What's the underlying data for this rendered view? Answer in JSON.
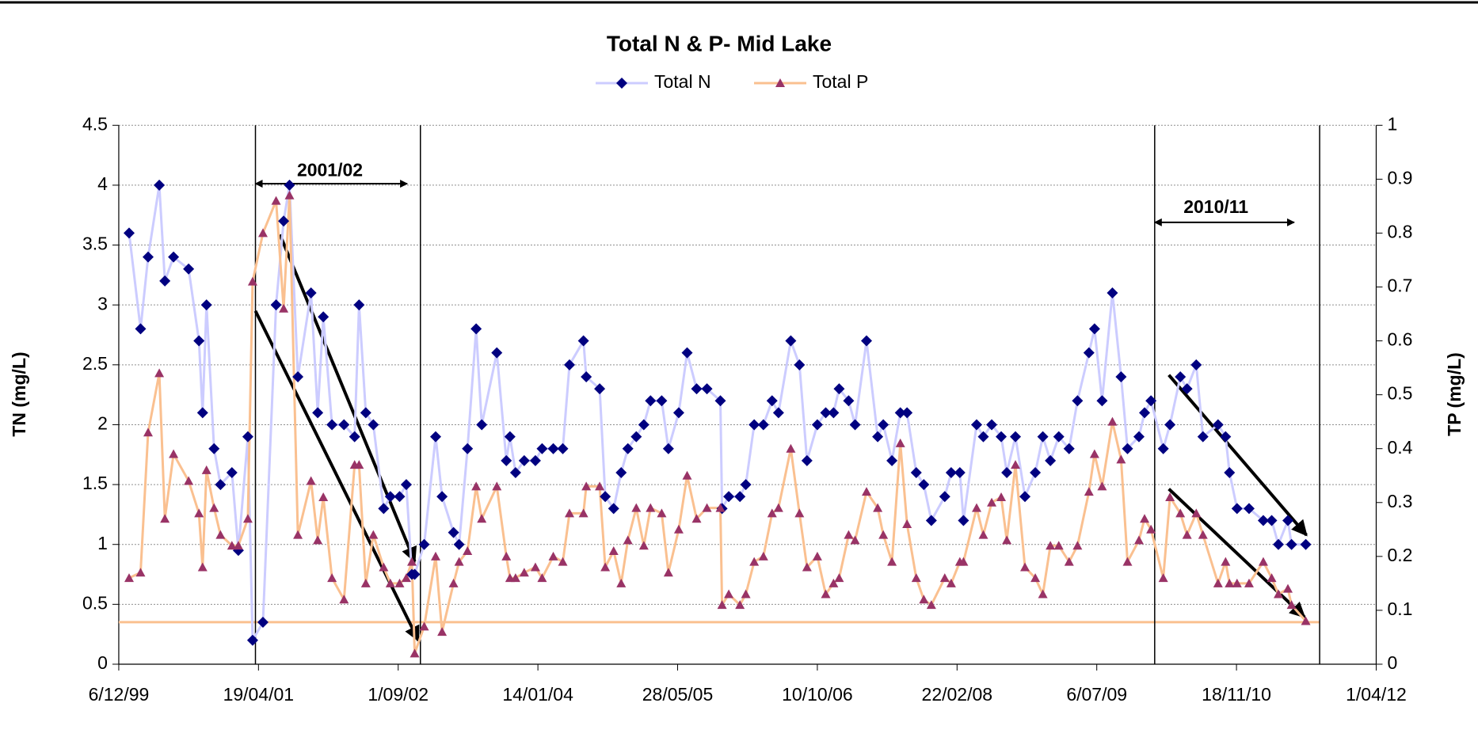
{
  "chart_data": {
    "type": "line",
    "title": "Total N & P- Mid Lake",
    "y_label": "TN (mg/L)",
    "y2_label": "TP (mg/L)",
    "annotations": [
      "2001/02",
      "2010/11"
    ],
    "x": [
      "2000-01-12",
      "2000-02-22",
      "2000-03-20",
      "2000-04-29",
      "2000-05-19",
      "2000-06-19",
      "2000-08-12",
      "2000-09-18",
      "2000-10-01",
      "2000-10-15",
      "2000-11-11",
      "2000-12-04",
      "2001-01-14",
      "2001-02-06",
      "2001-03-12",
      "2001-03-29",
      "2001-05-05",
      "2001-06-21",
      "2001-07-18",
      "2001-08-08",
      "2001-09-07",
      "2001-10-24",
      "2001-11-17",
      "2001-12-07",
      "2002-01-07",
      "2002-02-19",
      "2002-03-29",
      "2002-04-14",
      "2002-05-08",
      "2002-06-04",
      "2002-07-11",
      "2002-08-04",
      "2002-09-06",
      "2002-09-30",
      "2002-10-20",
      "2002-10-30",
      "2002-12-03",
      "2003-01-13",
      "2003-02-05",
      "2003-03-18",
      "2003-04-07",
      "2003-05-07",
      "2003-06-07",
      "2003-06-27",
      "2003-08-20",
      "2003-09-23",
      "2003-10-06",
      "2003-10-26",
      "2003-11-26",
      "2004-01-05",
      "2004-01-29",
      "2004-03-09",
      "2004-04-12",
      "2004-05-06",
      "2004-06-25",
      "2004-07-05",
      "2004-08-22",
      "2004-09-11",
      "2004-10-11",
      "2004-11-07",
      "2004-12-01",
      "2004-12-31",
      "2005-01-27",
      "2005-02-20",
      "2005-04-01",
      "2005-04-25",
      "2005-06-01",
      "2005-07-01",
      "2005-08-04",
      "2005-09-10",
      "2005-10-28",
      "2005-11-03",
      "2005-11-27",
      "2006-01-06",
      "2006-01-27",
      "2006-02-26",
      "2006-03-31",
      "2006-05-01",
      "2006-05-24",
      "2006-07-07",
      "2006-08-07",
      "2006-09-03",
      "2006-10-10",
      "2006-11-09",
      "2006-12-07",
      "2006-12-27",
      "2007-01-30",
      "2007-02-22",
      "2007-04-04",
      "2007-05-14",
      "2007-06-03",
      "2007-07-04",
      "2007-08-03",
      "2007-08-27",
      "2007-09-29",
      "2007-10-26",
      "2007-11-22",
      "2008-01-09",
      "2008-02-01",
      "2008-03-03",
      "2008-03-16",
      "2008-05-02",
      "2008-05-26",
      "2008-06-25",
      "2008-07-29",
      "2008-08-18",
      "2008-09-18",
      "2008-10-22",
      "2008-11-28",
      "2008-12-25",
      "2009-01-21",
      "2009-02-20",
      "2009-03-29",
      "2009-04-28",
      "2009-06-08",
      "2009-06-28",
      "2009-07-25",
      "2009-08-31",
      "2009-10-01",
      "2009-10-24",
      "2009-12-04",
      "2009-12-24",
      "2010-01-16",
      "2010-03-01",
      "2010-03-25",
      "2010-05-01",
      "2010-05-25",
      "2010-06-27",
      "2010-07-21",
      "2010-09-13",
      "2010-10-10",
      "2010-10-24",
      "2010-11-20",
      "2011-01-02",
      "2011-02-22",
      "2011-03-24",
      "2011-04-17",
      "2011-05-21",
      "2011-06-03",
      "2011-07-24"
    ],
    "series": [
      {
        "name": "Total N",
        "line_color": "#ccccff",
        "color": "#000080",
        "marker": "diamond",
        "values": [
          3.6,
          2.8,
          3.4,
          4.0,
          3.2,
          3.4,
          3.3,
          2.7,
          2.1,
          3.0,
          1.8,
          1.5,
          1.6,
          0.95,
          1.9,
          0.2,
          0.35,
          3.0,
          3.7,
          4.0,
          2.4,
          3.1,
          2.1,
          2.9,
          2.0,
          2.0,
          1.9,
          3.0,
          2.1,
          2.0,
          1.3,
          1.4,
          1.4,
          1.5,
          0.75,
          0.75,
          1.0,
          1.9,
          1.4,
          1.1,
          1.0,
          1.8,
          2.8,
          2.0,
          2.6,
          1.7,
          1.9,
          1.6,
          1.7,
          1.7,
          1.8,
          1.8,
          1.8,
          2.5,
          2.7,
          2.4,
          2.3,
          1.4,
          1.3,
          1.6,
          1.8,
          1.9,
          2.0,
          2.2,
          2.2,
          1.8,
          2.1,
          2.6,
          2.3,
          2.3,
          2.2,
          1.3,
          1.4,
          1.4,
          1.5,
          2.0,
          2.0,
          2.2,
          2.1,
          2.7,
          2.5,
          1.7,
          2.0,
          2.1,
          2.1,
          2.3,
          2.2,
          2.0,
          2.7,
          1.9,
          2.0,
          1.7,
          2.1,
          2.1,
          1.6,
          1.5,
          1.2,
          1.4,
          1.6,
          1.6,
          1.2,
          2.0,
          1.9,
          2.0,
          1.9,
          1.6,
          1.9,
          1.4,
          1.6,
          1.9,
          1.7,
          1.9,
          1.8,
          2.2,
          2.6,
          2.8,
          2.2,
          3.1,
          2.4,
          1.8,
          1.9,
          2.1,
          2.2,
          1.8,
          2.0,
          2.4,
          2.3,
          2.5,
          1.9,
          2.0,
          1.9,
          1.6,
          1.3,
          1.3,
          1.2,
          1.2,
          1.0,
          1.2,
          1.0,
          1.0
        ]
      },
      {
        "name": "Total P",
        "axis": "y2",
        "line_color": "#fac090",
        "color": "#993366",
        "marker": "triangle",
        "values": [
          0.16,
          0.17,
          0.43,
          0.54,
          0.27,
          0.39,
          0.34,
          0.28,
          0.18,
          0.36,
          0.29,
          0.24,
          0.22,
          0.22,
          0.27,
          0.71,
          0.8,
          0.86,
          0.66,
          0.87,
          0.24,
          0.34,
          0.23,
          0.31,
          0.16,
          0.12,
          0.37,
          0.37,
          0.15,
          0.24,
          0.18,
          0.15,
          0.15,
          0.16,
          0.19,
          0.02,
          0.07,
          0.2,
          0.06,
          0.15,
          0.19,
          0.21,
          0.33,
          0.27,
          0.33,
          0.2,
          0.16,
          0.16,
          0.17,
          0.18,
          0.16,
          0.2,
          0.19,
          0.28,
          0.28,
          0.33,
          0.33,
          0.18,
          0.21,
          0.15,
          0.23,
          0.29,
          0.22,
          0.29,
          0.28,
          0.17,
          0.25,
          0.35,
          0.27,
          0.29,
          0.29,
          0.11,
          0.13,
          0.11,
          0.13,
          0.19,
          0.2,
          0.28,
          0.29,
          0.4,
          0.28,
          0.18,
          0.2,
          0.13,
          0.15,
          0.16,
          0.24,
          0.23,
          0.32,
          0.29,
          0.24,
          0.19,
          0.41,
          0.26,
          0.16,
          0.12,
          0.11,
          0.16,
          0.15,
          0.19,
          0.19,
          0.29,
          0.24,
          0.3,
          0.31,
          0.23,
          0.37,
          0.18,
          0.16,
          0.13,
          0.22,
          0.22,
          0.19,
          0.22,
          0.32,
          0.39,
          0.33,
          0.45,
          0.38,
          0.19,
          0.23,
          0.27,
          0.25,
          0.16,
          0.31,
          0.28,
          0.24,
          0.28,
          0.24,
          0.15,
          0.19,
          0.15,
          0.15,
          0.15,
          0.19,
          0.16,
          0.13,
          0.14,
          0.11,
          0.08
        ]
      }
    ],
    "reference_line": {
      "value": 0.078,
      "axis": "y2",
      "color": "#fac090"
    },
    "xlim": [
      "1999-12-06",
      "2012-04-01"
    ],
    "xticks": [
      {
        "value": "1999-12-06",
        "label": "6/12/99"
      },
      {
        "value": "2001-04-19",
        "label": "19/04/01"
      },
      {
        "value": "2002-09-01",
        "label": "1/09/02"
      },
      {
        "value": "2004-01-14",
        "label": "14/01/04"
      },
      {
        "value": "2005-05-28",
        "label": "28/05/05"
      },
      {
        "value": "2006-10-10",
        "label": "10/10/06"
      },
      {
        "value": "2008-02-22",
        "label": "22/02/08"
      },
      {
        "value": "2009-07-06",
        "label": "6/07/09"
      },
      {
        "value": "2010-11-18",
        "label": "18/11/10"
      },
      {
        "value": "2012-04-01",
        "label": "1/04/12"
      }
    ],
    "ylim": [
      0,
      4.5
    ],
    "yticks": [
      0,
      0.5,
      1,
      1.5,
      2,
      2.5,
      3,
      3.5,
      4,
      4.5
    ],
    "y2lim": [
      0,
      1
    ],
    "y2ticks": [
      0,
      0.1,
      0.2,
      0.3,
      0.4,
      0.5,
      0.6,
      0.7,
      0.8,
      0.9,
      1
    ],
    "grid": true
  }
}
